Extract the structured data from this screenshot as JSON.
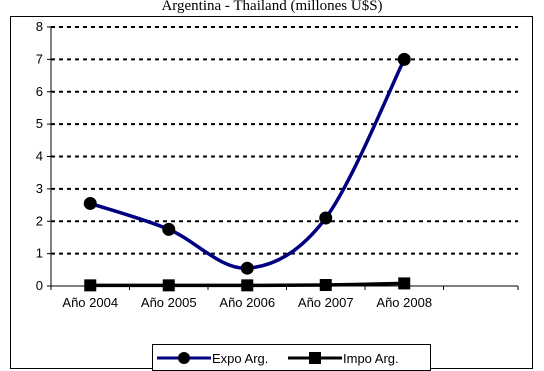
{
  "title": "Argentina - Thailand (millones U$S)",
  "chart_data": {
    "type": "line",
    "title": "Argentina - Thailand (millones U$S)",
    "categories": [
      "Año 2004",
      "Año 2005",
      "Año 2006",
      "Año 2007",
      "Año 2008"
    ],
    "ylim": [
      0,
      8
    ],
    "yticks": [
      "0",
      "1",
      "2",
      "3",
      "4",
      "5",
      "6",
      "7",
      "8"
    ],
    "grid": "horizontal-dashed",
    "legend_position": "bottom",
    "series": [
      {
        "name": "Expo Arg.",
        "values": [
          2.55,
          1.75,
          0.55,
          2.1,
          7.0
        ],
        "color": "#000080",
        "marker": "circle"
      },
      {
        "name": "Impo Arg.",
        "values": [
          0.02,
          0.02,
          0.02,
          0.03,
          0.08
        ],
        "color": "#000000",
        "marker": "square"
      }
    ]
  }
}
